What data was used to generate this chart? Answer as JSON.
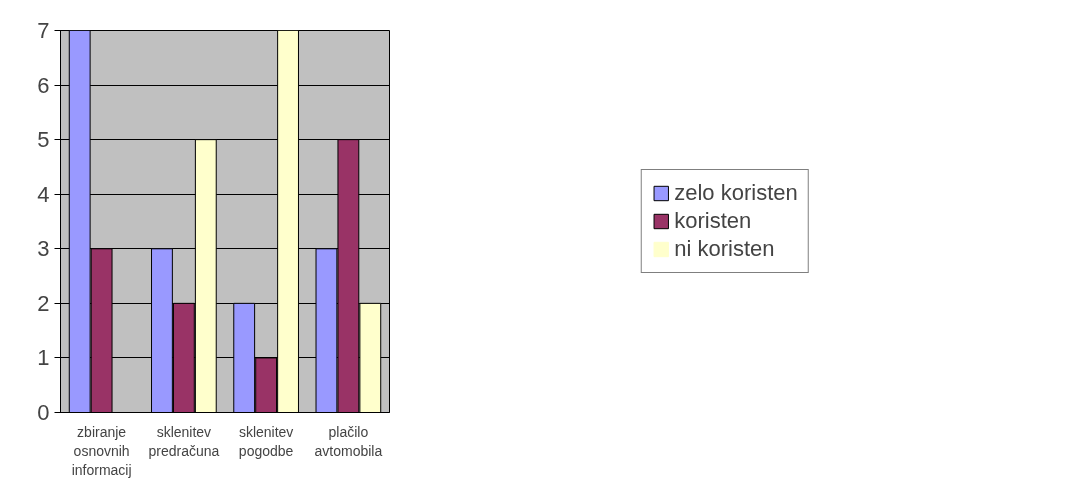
{
  "chart_data": {
    "type": "bar",
    "categories": [
      "zbiranje osnovnih informacij",
      "sklenitev predračuna",
      "sklenitev pogodbe",
      "plačilo avtomobila"
    ],
    "series": [
      {
        "name": "zelo koristen",
        "color": "#9999ff",
        "values": [
          7,
          3,
          2,
          3
        ]
      },
      {
        "name": "koristen",
        "color": "#993366",
        "values": [
          3,
          2,
          1,
          5
        ]
      },
      {
        "name": "ni koristen",
        "color": "#ffffcc",
        "values": [
          0,
          5,
          7,
          2
        ]
      }
    ],
    "ylim": [
      0,
      7
    ],
    "yticks": [
      0,
      1,
      2,
      3,
      4,
      5,
      6,
      7
    ],
    "grid": "y",
    "legend": "right"
  }
}
